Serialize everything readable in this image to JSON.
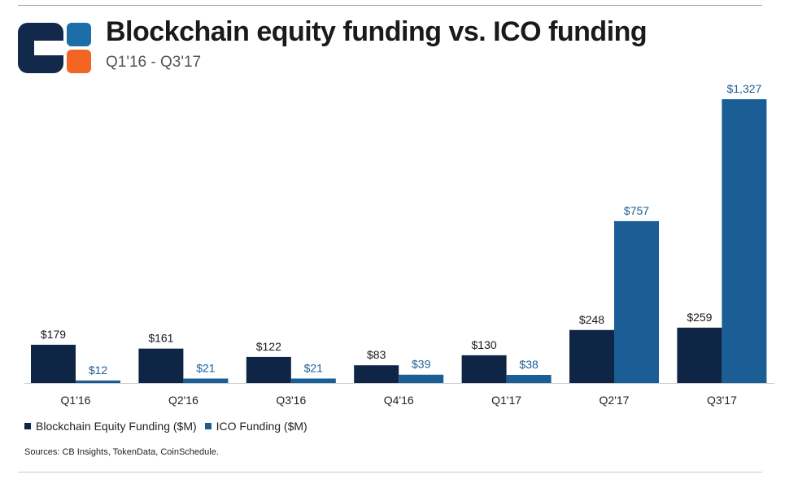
{
  "header": {
    "title": "Blockchain equity funding vs. ICO funding",
    "subtitle": "Q1'16 - Q3'17"
  },
  "colors": {
    "equity": "#0f2545",
    "ico": "#1b5e96",
    "logo_navy": "#13294b",
    "logo_blue": "#1b6ea8",
    "logo_orange": "#f26522"
  },
  "chart_data": {
    "type": "bar",
    "title": "Blockchain equity funding vs. ICO funding",
    "subtitle": "Q1'16 - Q3'17",
    "categories": [
      "Q1'16",
      "Q2'16",
      "Q3'16",
      "Q4'16",
      "Q1'17",
      "Q2'17",
      "Q3'17"
    ],
    "series": [
      {
        "name": "Blockchain Equity Funding ($M)",
        "values": [
          179,
          161,
          122,
          83,
          130,
          248,
          259
        ],
        "labels": [
          "$179",
          "$161",
          "$122",
          "$83",
          "$130",
          "$248",
          "$259"
        ]
      },
      {
        "name": "ICO Funding ($M)",
        "values": [
          12,
          21,
          21,
          39,
          38,
          757,
          1327
        ],
        "labels": [
          "$12",
          "$21",
          "$21",
          "$39",
          "$38",
          "$757",
          "$1,327"
        ]
      }
    ],
    "ylim": [
      0,
      1327
    ],
    "grid": false,
    "legend": "bottom-left"
  },
  "legend": {
    "equity_label": "Blockchain Equity Funding ($M)",
    "ico_label": "ICO Funding ($M)"
  },
  "source": "Sources: CB Insights, TokenData, CoinSchedule."
}
